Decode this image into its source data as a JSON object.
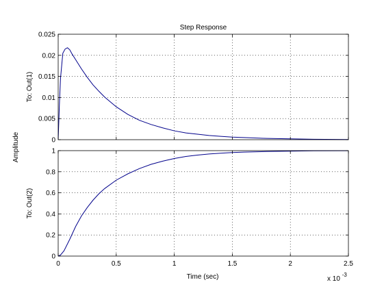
{
  "chart_data": {
    "type": "line",
    "title": "Step Response",
    "xlabel": "Time (sec)",
    "ylabel": "Amplitude",
    "x_multiplier": {
      "base": "x 10",
      "exponent": "-3"
    },
    "xlim": [
      0,
      2.5
    ],
    "x_ticks": [
      0,
      0.5,
      1,
      1.5,
      2,
      2.5
    ],
    "x_tick_labels": [
      "0",
      "0.5",
      "1",
      "1.5",
      "2",
      "2.5"
    ],
    "grid": true,
    "line_color": "#00008b",
    "subplots": [
      {
        "ylabel": "To: Out(1)",
        "ylim": [
          0,
          0.025
        ],
        "y_ticks": [
          0,
          0.005,
          0.01,
          0.015,
          0.02,
          0.025
        ],
        "y_tick_labels": [
          "0",
          "0.005",
          "0.01",
          "0.015",
          "0.02",
          "0.025"
        ],
        "series": [
          {
            "x": [
              0,
              0.01,
              0.02,
              0.04,
              0.06,
              0.08,
              0.1,
              0.12,
              0.15,
              0.2,
              0.25,
              0.3,
              0.35,
              0.4,
              0.5,
              0.6,
              0.7,
              0.8,
              0.9,
              1.0,
              1.1,
              1.2,
              1.3,
              1.4,
              1.5,
              1.6,
              1.8,
              2.0,
              2.2,
              2.5
            ],
            "y": [
              0,
              0.008,
              0.0145,
              0.0205,
              0.0215,
              0.0218,
              0.0213,
              0.0203,
              0.019,
              0.0168,
              0.0148,
              0.013,
              0.0115,
              0.0101,
              0.0078,
              0.006,
              0.0046,
              0.0036,
              0.0028,
              0.0021,
              0.0016,
              0.0013,
              0.001,
              0.0008,
              0.0006,
              0.0005,
              0.0003,
              0.0002,
              0.0001,
              5e-05
            ]
          }
        ]
      },
      {
        "ylabel": "To: Out(2)",
        "ylim": [
          0,
          1
        ],
        "y_ticks": [
          0,
          0.2,
          0.4,
          0.6,
          0.8,
          1
        ],
        "y_tick_labels": [
          "0",
          "0.2",
          "0.4",
          "0.6",
          "0.8",
          "1"
        ],
        "series": [
          {
            "x": [
              0,
              0.02,
              0.05,
              0.1,
              0.15,
              0.2,
              0.25,
              0.3,
              0.35,
              0.4,
              0.5,
              0.6,
              0.7,
              0.8,
              0.9,
              1.0,
              1.1,
              1.2,
              1.3,
              1.4,
              1.5,
              1.6,
              1.8,
              2.0,
              2.2,
              2.5
            ],
            "y": [
              0,
              0.01,
              0.05,
              0.16,
              0.28,
              0.38,
              0.46,
              0.53,
              0.59,
              0.64,
              0.72,
              0.78,
              0.83,
              0.87,
              0.9,
              0.925,
              0.945,
              0.958,
              0.968,
              0.976,
              0.982,
              0.986,
              0.992,
              0.995,
              0.998,
              0.999
            ]
          }
        ]
      }
    ]
  }
}
